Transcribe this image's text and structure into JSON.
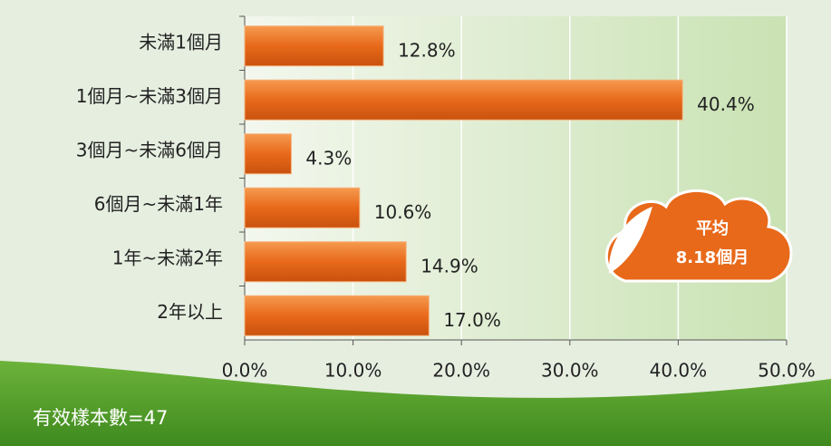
{
  "chart_data": {
    "type": "bar",
    "orientation": "horizontal",
    "categories": [
      "未滿1個月",
      "1個月~未滿3個月",
      "3個月~未滿6個月",
      "6個月~未滿1年",
      "1年~未滿2年",
      "2年以上"
    ],
    "values": [
      12.8,
      40.4,
      4.3,
      10.6,
      14.9,
      17.0
    ],
    "value_labels": [
      "12.8%",
      "40.4%",
      "4.3%",
      "10.6%",
      "14.9%",
      "17.0%"
    ],
    "color": "#e8691a",
    "xlim": [
      0,
      50
    ],
    "xticks": [
      {
        "value": 0,
        "label": "0.0%"
      },
      {
        "value": 10,
        "label": "10.0%"
      },
      {
        "value": 20,
        "label": "20.0%"
      },
      {
        "value": 30,
        "label": "30.0%"
      },
      {
        "value": 40,
        "label": "40.0%"
      },
      {
        "value": 50,
        "label": "50.0%"
      }
    ],
    "grid": true,
    "annotations": [
      "平均",
      "8.18個月"
    ],
    "note": "有效樣本數=47"
  }
}
